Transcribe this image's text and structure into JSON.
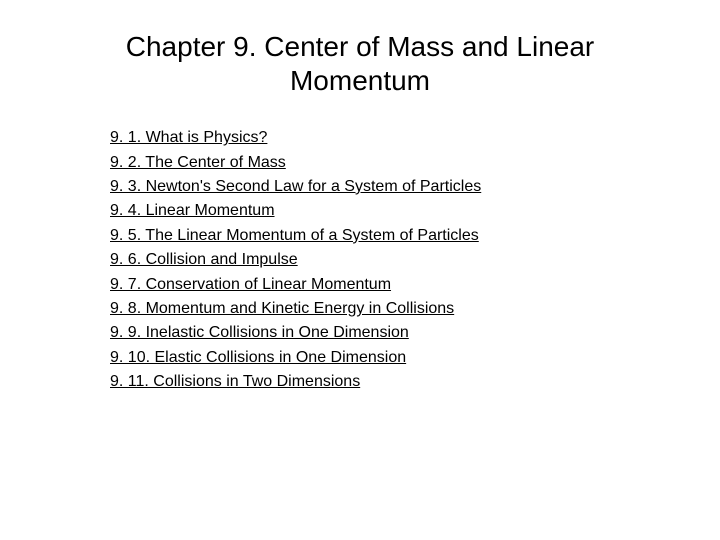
{
  "chapter": {
    "title": "Chapter 9. Center of Mass and Linear Momentum",
    "sections": [
      {
        "label": "9. 1. What is Physics?"
      },
      {
        "label": "9. 2. The Center of Mass"
      },
      {
        "label": "9. 3. Newton's Second Law for a System of Particles"
      },
      {
        "label": "9. 4. Linear Momentum"
      },
      {
        "label": "9. 5. The Linear Momentum of a System of Particles"
      },
      {
        "label": "9. 6. Collision and Impulse"
      },
      {
        "label": "9. 7. Conservation of Linear Momentum"
      },
      {
        "label": "9. 8. Momentum and Kinetic Energy in Collisions"
      },
      {
        "label": "9. 9. Inelastic Collisions in One Dimension"
      },
      {
        "label": "9. 10. Elastic Collisions in One Dimension"
      },
      {
        "label": "9. 11. Collisions in Two Dimensions"
      }
    ]
  },
  "styling": {
    "title_fontsize": 28,
    "title_color": "#000000",
    "section_fontsize": 16,
    "section_color": "#000000",
    "background_color": "#ffffff"
  }
}
